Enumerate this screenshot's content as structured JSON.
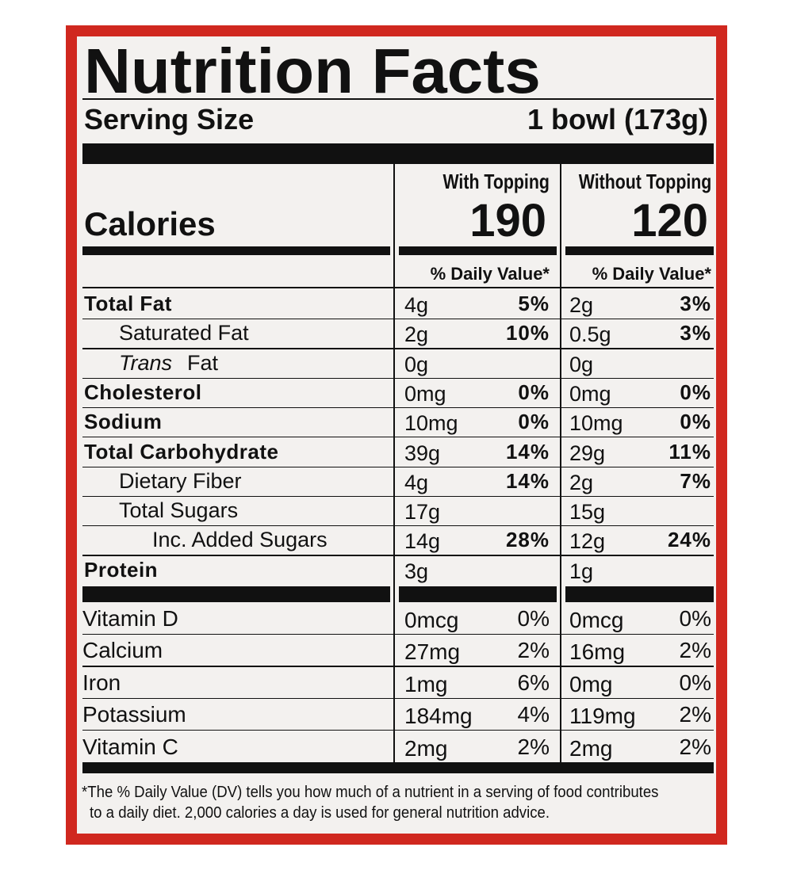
{
  "title": "Nutrition Facts",
  "serving": {
    "label": "Serving Size",
    "value": "1 bowl (173g)"
  },
  "calories": {
    "label": "Calories",
    "columns": [
      {
        "heading": "With Topping",
        "value": "190"
      },
      {
        "heading": "Without Topping",
        "value": "120"
      }
    ]
  },
  "dv_heading": "% Daily Value*",
  "nutrients": [
    {
      "name": "Total Fat",
      "bold": true,
      "indent": 0,
      "with": [
        "4g",
        "5%"
      ],
      "without": [
        "2g",
        "3%"
      ]
    },
    {
      "name": "Saturated Fat",
      "bold": false,
      "indent": 1,
      "with": [
        "2g",
        "10%"
      ],
      "without": [
        "0.5g",
        "3%"
      ]
    },
    {
      "italic": "Trans",
      "name": "Fat",
      "bold": false,
      "indent": 1,
      "with": [
        "0g"
      ],
      "without": [
        "0g"
      ]
    },
    {
      "name": "Cholesterol",
      "bold": true,
      "indent": 0,
      "with": [
        "0mg",
        "0%"
      ],
      "without": [
        "0mg",
        "0%"
      ]
    },
    {
      "name": "Sodium",
      "bold": true,
      "indent": 0,
      "with": [
        "10mg",
        "0%"
      ],
      "without": [
        "10mg",
        "0%"
      ]
    },
    {
      "name": "Total Carbohydrate",
      "bold": true,
      "indent": 0,
      "with": [
        "39g",
        "14%"
      ],
      "without": [
        "29g",
        "11%"
      ]
    },
    {
      "name": "Dietary Fiber",
      "bold": false,
      "indent": 1,
      "with": [
        "4g",
        "14%"
      ],
      "without": [
        "2g",
        "7%"
      ]
    },
    {
      "name": "Total Sugars",
      "bold": false,
      "indent": 1,
      "with": [
        "17g"
      ],
      "without": [
        "15g"
      ]
    },
    {
      "name": "Inc. Added Sugars",
      "bold": false,
      "indent": 2,
      "with": [
        "14g",
        "28%"
      ],
      "without": [
        "12g",
        "24%"
      ]
    },
    {
      "name": "Protein",
      "bold": true,
      "indent": 0,
      "with": [
        "3g"
      ],
      "without": [
        "1g"
      ]
    }
  ],
  "vitamins": [
    {
      "name": "Vitamin D",
      "with": [
        "0mcg",
        "0%"
      ],
      "without": [
        "0mcg",
        "0%"
      ]
    },
    {
      "name": "Calcium",
      "with": [
        "27mg",
        "2%"
      ],
      "without": [
        "16mg",
        "2%"
      ]
    },
    {
      "name": "Iron",
      "with": [
        "1mg",
        "6%"
      ],
      "without": [
        "0mg",
        "0%"
      ]
    },
    {
      "name": "Potassium",
      "with": [
        "184mg",
        "4%"
      ],
      "without": [
        "119mg",
        "2%"
      ]
    },
    {
      "name": "Vitamin C",
      "with": [
        "2mg",
        "2%"
      ],
      "without": [
        "2mg",
        "2%"
      ]
    }
  ],
  "footnote": [
    "*The % Daily Value (DV) tells you how much of a nutrient in a serving of food contributes",
    "to a daily diet. 2,000 calories a day is used for general nutrition advice."
  ]
}
